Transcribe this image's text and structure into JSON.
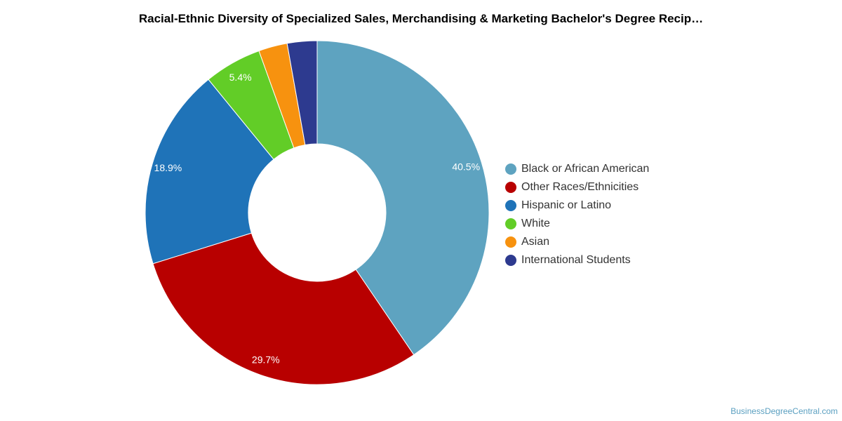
{
  "chart_data": {
    "type": "pie",
    "title": "Racial-Ethnic Diversity of Specialized Sales, Merchandising & Marketing Bachelor's Degree Recip…",
    "legend_position": "right",
    "donut": true,
    "slices": [
      {
        "name": "Black or African American",
        "value": 40.5,
        "label": "40.5%",
        "color": "#5ea3c0"
      },
      {
        "name": "Other Races/Ethnicities",
        "value": 29.7,
        "label": "29.7%",
        "color": "#b80000"
      },
      {
        "name": "Hispanic or Latino",
        "value": 18.9,
        "label": "18.9%",
        "color": "#1f73b8"
      },
      {
        "name": "White",
        "value": 5.4,
        "label": "5.4%",
        "color": "#62cd27"
      },
      {
        "name": "Asian",
        "value": 2.7,
        "label": "",
        "color": "#f7920f"
      },
      {
        "name": "International Students",
        "value": 2.8,
        "label": "",
        "color": "#2d3a8f"
      }
    ]
  },
  "watermark": "BusinessDegreeCentral.com"
}
